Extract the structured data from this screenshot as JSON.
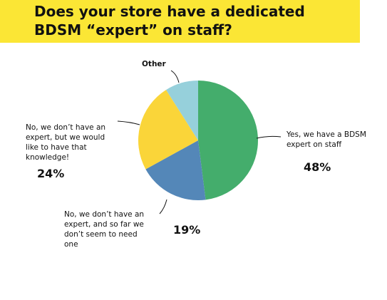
{
  "header": {
    "title": "Does your store have a dedicated BDSM “expert” on staff?",
    "band_color": "#fbe635"
  },
  "chart_data": {
    "type": "pie",
    "title": "Does your store have a dedicated BDSM “expert” on staff?",
    "slices": [
      {
        "label": "Yes, we have a BDSM expert on staff",
        "value": 48,
        "value_label": "48%",
        "color": "#44ad6c"
      },
      {
        "label": "No, we don’t have an expert, and so far we don’t seem to need one",
        "value": 19,
        "value_label": "19%",
        "color": "#5487b8"
      },
      {
        "label": "No, we don’t have an expert, but we would like to have that knowledge!",
        "value": 24,
        "value_label": "24%",
        "color": "#fad539"
      },
      {
        "label": "Other",
        "value": 9,
        "value_label": "",
        "color": "#96d0db"
      }
    ],
    "start": "12 o'clock",
    "direction": "clockwise"
  },
  "labels": {
    "yes_lines": [
      "Yes, we have a BDSM",
      "expert on staff"
    ],
    "no_need_lines": [
      "No, we don’t have an",
      "expert, and so far we",
      "don’t seem to need",
      "one"
    ],
    "no_like_lines": [
      "No, we don’t have an",
      "expert, but we would",
      "like to have that",
      "knowledge!"
    ],
    "other": "Other"
  }
}
